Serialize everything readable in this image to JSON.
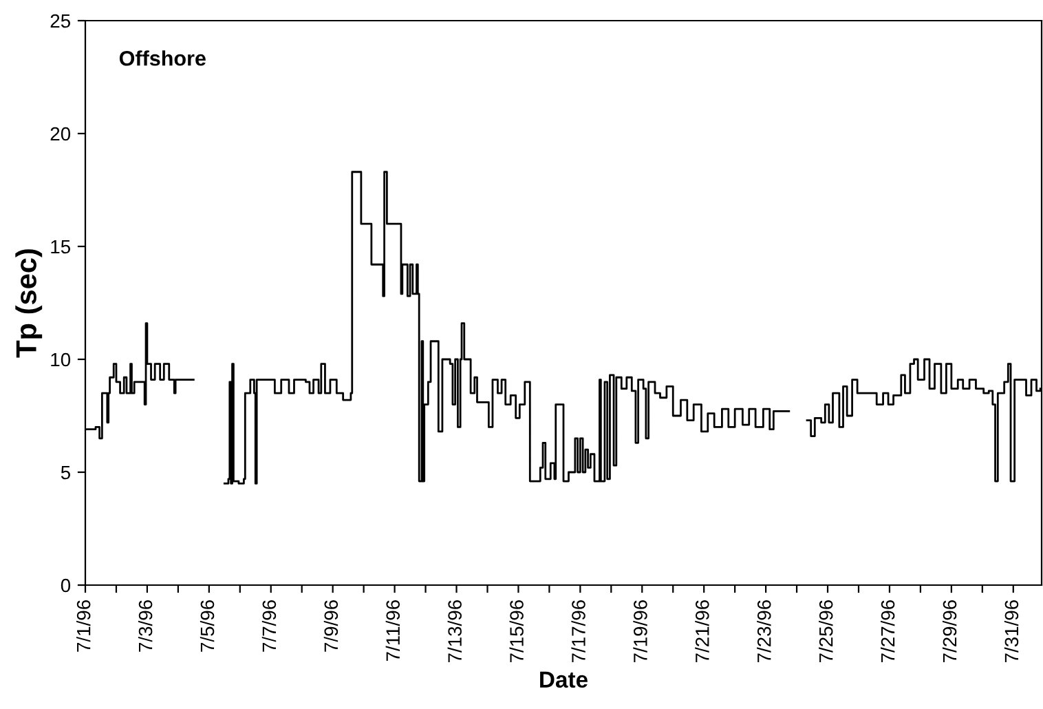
{
  "chart_data": {
    "type": "step",
    "ylabel": "Tp (sec)",
    "xlabel": "Date",
    "annotations": [
      "Offshore"
    ],
    "xlim": [
      "1996-07-01T00:00",
      "1996-07-31T22:00"
    ],
    "ylim": [
      0,
      25
    ],
    "yticks": [
      0,
      5,
      10,
      15,
      20,
      25
    ],
    "grid": false,
    "marker": "none",
    "line_style": "solid",
    "xticks": [
      {
        "value": "1996-07-01",
        "label": "7/1/96"
      },
      {
        "value": "1996-07-02",
        "label": null
      },
      {
        "value": "1996-07-03",
        "label": "7/3/96"
      },
      {
        "value": "1996-07-04",
        "label": null
      },
      {
        "value": "1996-07-05",
        "label": "7/5/96"
      },
      {
        "value": "1996-07-06",
        "label": null
      },
      {
        "value": "1996-07-07",
        "label": "7/7/96"
      },
      {
        "value": "1996-07-08",
        "label": null
      },
      {
        "value": "1996-07-09",
        "label": "7/9/96"
      },
      {
        "value": "1996-07-10",
        "label": null
      },
      {
        "value": "1996-07-11",
        "label": "7/11/96"
      },
      {
        "value": "1996-07-12",
        "label": null
      },
      {
        "value": "1996-07-13",
        "label": "7/13/96"
      },
      {
        "value": "1996-07-14",
        "label": null
      },
      {
        "value": "1996-07-15",
        "label": "7/15/96"
      },
      {
        "value": "1996-07-16",
        "label": null
      },
      {
        "value": "1996-07-17",
        "label": "7/17/96"
      },
      {
        "value": "1996-07-18",
        "label": null
      },
      {
        "value": "1996-07-19",
        "label": "7/19/96"
      },
      {
        "value": "1996-07-20",
        "label": null
      },
      {
        "value": "1996-07-21",
        "label": "7/21/96"
      },
      {
        "value": "1996-07-22",
        "label": null
      },
      {
        "value": "1996-07-23",
        "label": "7/23/96"
      },
      {
        "value": "1996-07-24",
        "label": null
      },
      {
        "value": "1996-07-25",
        "label": "7/25/96"
      },
      {
        "value": "1996-07-26",
        "label": null
      },
      {
        "value": "1996-07-27",
        "label": "7/27/96"
      },
      {
        "value": "1996-07-28",
        "label": null
      },
      {
        "value": "1996-07-29",
        "label": "7/29/96"
      },
      {
        "value": "1996-07-30",
        "label": null
      },
      {
        "value": "1996-07-31",
        "label": "7/31/96"
      }
    ],
    "series": [
      {
        "color": "#000000",
        "x": [
          "1996-07-01T00:00",
          "1996-07-01T08:00",
          "1996-07-01T11:00",
          "1996-07-01T13:00",
          "1996-07-01T17:00",
          "1996-07-01T18:00",
          "1996-07-01T19:00",
          "1996-07-01T22:00",
          "1996-07-02T00:00",
          "1996-07-02T03:00",
          "1996-07-02T06:00",
          "1996-07-02T08:00",
          "1996-07-02T11:00",
          "1996-07-02T12:00",
          "1996-07-02T14:00",
          "1996-07-02T22:00",
          "1996-07-02T23:00",
          "1996-07-03T00:00",
          "1996-07-03T03:00",
          "1996-07-03T06:00",
          "1996-07-03T10:00",
          "1996-07-03T13:00",
          "1996-07-03T17:00",
          "1996-07-03T21:00",
          "1996-07-03T22:00",
          "1996-07-04T02:00",
          "1996-07-04T12:00",
          "1996-07-05T12:00",
          "1996-07-05T15:00",
          "1996-07-05T16:00",
          "1996-07-05T17:00",
          "1996-07-05T18:00",
          "1996-07-05T19:00",
          "1996-07-05T23:00",
          "1996-07-06T03:00",
          "1996-07-06T04:00",
          "1996-07-06T07:00",
          "1996-07-06T08:00",
          "1996-07-06T11:00",
          "1996-07-06T12:00",
          "1996-07-06T13:00",
          "1996-07-06T16:00",
          "1996-07-06T22:00",
          "1996-07-07T03:00",
          "1996-07-07T08:00",
          "1996-07-07T14:00",
          "1996-07-07T18:00",
          "1996-07-08T03:00",
          "1996-07-08T06:00",
          "1996-07-08T09:00",
          "1996-07-08T13:00",
          "1996-07-08T15:00",
          "1996-07-08T18:00",
          "1996-07-08T22:00",
          "1996-07-09T03:00",
          "1996-07-09T08:00",
          "1996-07-09T14:00",
          "1996-07-09T15:00",
          "1996-07-09T21:00",
          "1996-07-09T22:00",
          "1996-07-10T05:00",
          "1996-07-10T06:00",
          "1996-07-10T13:00",
          "1996-07-10T15:00",
          "1996-07-10T16:00",
          "1996-07-10T18:00",
          "1996-07-11T03:00",
          "1996-07-11T05:00",
          "1996-07-11T06:00",
          "1996-07-11T10:00",
          "1996-07-11T12:00",
          "1996-07-11T14:00",
          "1996-07-11T16:00",
          "1996-07-11T17:00",
          "1996-07-11T18:00",
          "1996-07-11T19:00",
          "1996-07-11T21:00",
          "1996-07-11T22:00",
          "1996-07-11T23:00",
          "1996-07-12T02:00",
          "1996-07-12T04:00",
          "1996-07-12T07:00",
          "1996-07-12T10:00",
          "1996-07-12T13:00",
          "1996-07-12T19:00",
          "1996-07-12T21:00",
          "1996-07-12T23:00",
          "1996-07-13T01:00",
          "1996-07-13T03:00",
          "1996-07-13T04:00",
          "1996-07-13T06:00",
          "1996-07-13T11:00",
          "1996-07-13T14:00",
          "1996-07-13T16:00",
          "1996-07-13T21:00",
          "1996-07-14T01:00",
          "1996-07-14T04:00",
          "1996-07-14T08:00",
          "1996-07-14T11:00",
          "1996-07-14T14:00",
          "1996-07-14T18:00",
          "1996-07-14T22:00",
          "1996-07-15T01:00",
          "1996-07-15T05:00",
          "1996-07-15T09:00",
          "1996-07-15T14:00",
          "1996-07-15T17:00",
          "1996-07-15T19:00",
          "1996-07-15T21:00",
          "1996-07-16T01:00",
          "1996-07-16T04:00",
          "1996-07-16T05:00",
          "1996-07-16T09:00",
          "1996-07-16T11:00",
          "1996-07-16T15:00",
          "1996-07-16T20:00",
          "1996-07-16T22:00",
          "1996-07-17T00:00",
          "1996-07-17T02:00",
          "1996-07-17T04:00",
          "1996-07-17T06:00",
          "1996-07-17T08:00",
          "1996-07-17T11:00",
          "1996-07-17T15:00",
          "1996-07-17T16:00",
          "1996-07-17T19:00",
          "1996-07-17T21:00",
          "1996-07-17T23:00",
          "1996-07-18T02:00",
          "1996-07-18T04:00",
          "1996-07-18T08:00",
          "1996-07-18T12:00",
          "1996-07-18T16:00",
          "1996-07-18T19:00",
          "1996-07-18T21:00",
          "1996-07-19T01:00",
          "1996-07-19T03:00",
          "1996-07-19T05:00",
          "1996-07-19T10:00",
          "1996-07-19T14:00",
          "1996-07-19T19:00",
          "1996-07-20T00:00",
          "1996-07-20T06:00",
          "1996-07-20T11:00",
          "1996-07-20T16:00",
          "1996-07-20T22:00",
          "1996-07-21T03:00",
          "1996-07-21T08:00",
          "1996-07-21T14:00",
          "1996-07-21T19:00",
          "1996-07-22T00:00",
          "1996-07-22T06:00",
          "1996-07-22T11:00",
          "1996-07-22T16:00",
          "1996-07-22T22:00",
          "1996-07-23T03:00",
          "1996-07-23T06:00",
          "1996-07-23T18:00",
          "1996-07-24T08:00",
          "1996-07-24T11:00",
          "1996-07-24T14:00",
          "1996-07-24T19:00",
          "1996-07-24T22:00",
          "1996-07-25T01:00",
          "1996-07-25T04:00",
          "1996-07-25T09:00",
          "1996-07-25T12:00",
          "1996-07-25T15:00",
          "1996-07-25T19:00",
          "1996-07-25T23:00",
          "1996-07-26T09:00",
          "1996-07-26T14:00",
          "1996-07-26T19:00",
          "1996-07-26T23:00",
          "1996-07-27T03:00",
          "1996-07-27T09:00",
          "1996-07-27T12:00",
          "1996-07-27T16:00",
          "1996-07-27T19:00",
          "1996-07-27T22:00",
          "1996-07-28T03:00",
          "1996-07-28T07:00",
          "1996-07-28T11:00",
          "1996-07-28T16:00",
          "1996-07-28T20:00",
          "1996-07-29T00:00",
          "1996-07-29T05:00",
          "1996-07-29T09:00",
          "1996-07-29T14:00",
          "1996-07-29T19:00",
          "1996-07-30T01:00",
          "1996-07-30T05:00",
          "1996-07-30T08:00",
          "1996-07-30T10:00",
          "1996-07-30T12:00",
          "1996-07-30T17:00",
          "1996-07-30T20:00",
          "1996-07-30T22:00",
          "1996-07-31T01:00",
          "1996-07-31T05:00",
          "1996-07-31T10:00",
          "1996-07-31T14:00",
          "1996-07-31T18:00",
          "1996-07-31T21:00"
        ],
        "values": [
          6.9,
          7.0,
          6.5,
          8.5,
          7.2,
          8.5,
          9.2,
          9.8,
          9.0,
          8.5,
          9.2,
          8.5,
          9.8,
          8.5,
          9.0,
          8.0,
          11.6,
          9.8,
          9.1,
          9.8,
          9.1,
          9.8,
          9.1,
          8.5,
          9.1,
          9.1,
          null,
          4.5,
          4.7,
          9.0,
          4.5,
          9.8,
          4.6,
          4.5,
          4.7,
          8.5,
          8.5,
          9.1,
          8.5,
          4.5,
          9.1,
          9.1,
          9.1,
          8.5,
          9.1,
          8.5,
          9.1,
          9.0,
          8.5,
          9.1,
          8.5,
          9.8,
          8.5,
          9.1,
          8.5,
          8.2,
          8.5,
          18.3,
          18.3,
          16.0,
          16.0,
          14.2,
          14.2,
          12.8,
          18.3,
          16.0,
          16.0,
          12.9,
          14.2,
          12.8,
          14.2,
          12.9,
          12.9,
          14.2,
          12.9,
          4.6,
          10.8,
          4.6,
          8.0,
          9.0,
          10.8,
          10.8,
          6.8,
          10.0,
          9.8,
          8.0,
          10.0,
          7.0,
          10.0,
          11.6,
          10.0,
          8.5,
          9.2,
          8.1,
          8.1,
          7.0,
          9.1,
          8.5,
          9.1,
          8.0,
          8.4,
          7.4,
          8.0,
          9.0,
          4.6,
          4.6,
          5.2,
          6.3,
          4.7,
          5.4,
          4.7,
          8.0,
          8.0,
          4.6,
          5.0,
          6.5,
          5.0,
          6.5,
          5.0,
          6.0,
          5.2,
          5.8,
          4.6,
          9.1,
          4.6,
          9.0,
          4.7,
          9.3,
          5.3,
          9.2,
          8.7,
          9.2,
          8.6,
          6.3,
          9.1,
          8.7,
          6.5,
          9.0,
          8.5,
          8.3,
          8.8,
          7.5,
          8.2,
          7.3,
          8.0,
          6.8,
          7.6,
          7.0,
          7.8,
          7.0,
          7.8,
          7.1,
          7.8,
          7.0,
          7.8,
          6.9,
          7.7,
          null,
          7.3,
          6.6,
          7.4,
          7.2,
          8.0,
          7.2,
          8.5,
          7.0,
          8.8,
          7.5,
          9.1,
          8.5,
          8.5,
          8.0,
          8.5,
          8.0,
          8.4,
          9.3,
          8.5,
          9.8,
          10.0,
          9.1,
          10.0,
          8.7,
          9.8,
          8.5,
          9.8,
          8.7,
          9.1,
          8.7,
          9.1,
          8.7,
          8.5,
          8.6,
          8.0,
          4.6,
          8.5,
          9.0,
          9.8,
          4.6,
          9.1,
          9.1,
          8.4,
          9.1,
          8.6,
          8.7
        ]
      }
    ]
  }
}
